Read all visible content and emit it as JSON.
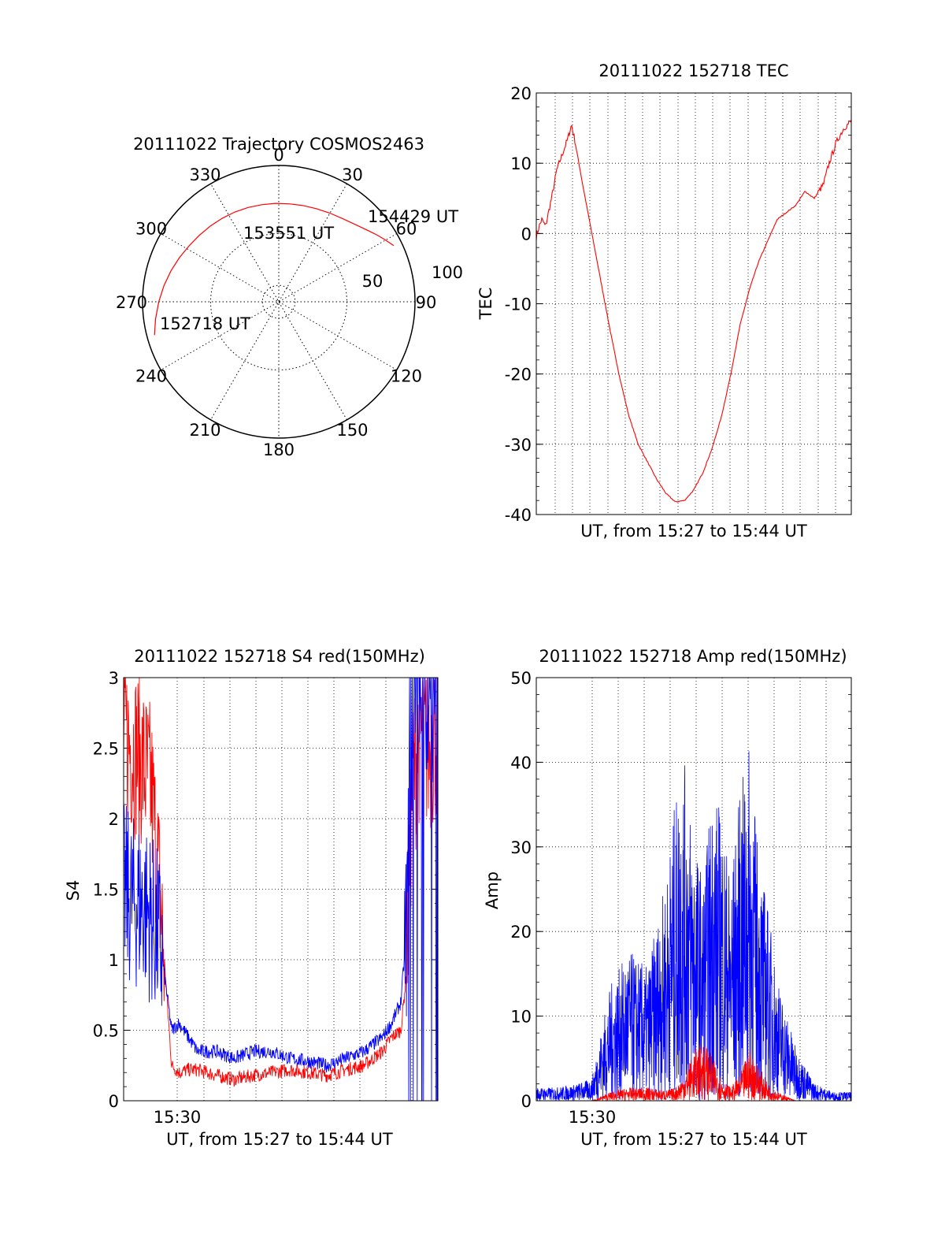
{
  "chart_data": [
    {
      "type": "polar",
      "title": "20111022 Trajectory COSMOS2463",
      "azimuth_labels": [
        "0",
        "30",
        "60",
        "90",
        "120",
        "150",
        "180",
        "210",
        "240",
        "270",
        "300",
        "330"
      ],
      "radial_labels": [
        "50",
        "100"
      ],
      "rlim": [
        0,
        100
      ],
      "grid": true,
      "trajectory": {
        "color": "#ff0000",
        "azimuth": [
          255,
          262,
          270,
          278,
          286,
          294,
          302,
          310,
          318,
          326,
          334,
          342,
          350,
          358,
          6,
          14,
          22,
          30,
          38,
          46,
          52,
          56,
          60,
          64
        ],
        "zenith": [
          85,
          82.2,
          79.3,
          76.6,
          74.1,
          71.8,
          69.8,
          68.4,
          67.4,
          66.6,
          66.0,
          65.5,
          65.1,
          65.0,
          65.0,
          65.5,
          66.3,
          67.6,
          69.4,
          72.4,
          75.8,
          78.6,
          81.5,
          84.5
        ]
      },
      "annotations": [
        "152718 UT",
        "153551 UT",
        "154429 UT"
      ]
    },
    {
      "type": "line",
      "title": "20111022 152718 TEC",
      "xlabel": "UT, from 15:27 to 15:44 UT",
      "ylabel": "TEC",
      "xlim": [
        0,
        17
      ],
      "ylim": [
        -40,
        20
      ],
      "yticks": [
        "-40",
        "-30",
        "-20",
        "-10",
        "0",
        "10",
        "20"
      ],
      "grid": true,
      "series": [
        {
          "color": "#ff0000",
          "x": [
            0,
            0.15,
            0.3,
            0.5,
            0.7,
            0.9,
            1.1,
            1.3,
            1.5,
            1.7,
            1.9,
            2.1,
            2.5,
            3.0,
            3.5,
            4.0,
            4.5,
            5.0,
            5.5,
            6.0,
            6.5,
            7.0,
            7.5,
            8.0,
            8.5,
            9.0,
            9.5,
            10.0,
            10.5,
            11.0,
            11.5,
            12.0,
            12.5,
            13.0,
            13.5,
            14.0,
            14.5,
            15.0,
            15.5,
            15.8,
            16.2,
            16.6,
            17.0
          ],
          "y": [
            -0.5,
            1,
            2,
            1,
            3.5,
            6,
            9,
            10.5,
            12,
            13.5,
            15.5,
            13,
            7,
            0,
            -7,
            -14,
            -20.5,
            -26,
            -30,
            -32.5,
            -35,
            -37,
            -38.2,
            -38,
            -36.5,
            -34,
            -30.5,
            -26,
            -20,
            -13,
            -8,
            -4,
            -1,
            2,
            3,
            4,
            6,
            5,
            7,
            10,
            13,
            15,
            16
          ]
        }
      ]
    },
    {
      "type": "line",
      "title": "20111022 152718 S4 red(150MHz)",
      "xlabel": "UT, from 15:27 to 15:44 UT",
      "ylabel": "S4",
      "xlim": [
        0,
        17
      ],
      "ylim": [
        0,
        3
      ],
      "yticks": [
        "0",
        "0.5",
        "1",
        "1.5",
        "2",
        "2.5",
        "3"
      ],
      "xticks": [
        "15:30"
      ],
      "grid": true,
      "series": [
        {
          "color": "#ff0000",
          "x": [
            0,
            0.5,
            1.0,
            1.5,
            2.0,
            2.3,
            2.6,
            3.0,
            3.5,
            4.0,
            5.0,
            6.0,
            7.0,
            8.0,
            9.0,
            10.0,
            11.0,
            12.0,
            13.0,
            14.0,
            14.5,
            15.0,
            15.3,
            15.6,
            16.0,
            16.5,
            17.0
          ],
          "y": [
            2.6,
            2.5,
            2.4,
            2.2,
            1.4,
            0.8,
            0.25,
            0.2,
            0.22,
            0.22,
            0.18,
            0.15,
            0.18,
            0.2,
            0.22,
            0.2,
            0.18,
            0.22,
            0.25,
            0.35,
            0.45,
            0.5,
            0.9,
            2.2,
            2.6,
            2.5,
            2.6
          ]
        },
        {
          "color": "#0000ff",
          "x": [
            0,
            0.5,
            1.0,
            1.5,
            2.0,
            2.3,
            2.6,
            3.0,
            3.5,
            4.0,
            5.0,
            6.0,
            7.0,
            8.0,
            9.0,
            10.0,
            11.0,
            12.0,
            13.0,
            14.0,
            14.5,
            15.0,
            15.3,
            15.6,
            16.0,
            16.5,
            17.0
          ],
          "y": [
            1.5,
            1.4,
            1.4,
            1.3,
            1.1,
            0.8,
            0.5,
            0.55,
            0.45,
            0.35,
            0.35,
            0.3,
            0.35,
            0.35,
            0.3,
            0.28,
            0.25,
            0.3,
            0.35,
            0.45,
            0.55,
            0.7,
            1.2,
            2.6,
            2.9,
            2.7,
            2.9
          ]
        }
      ]
    },
    {
      "type": "line",
      "title": "20111022 152718 Amp red(150MHz)",
      "xlabel": "UT, from 15:27 to 15:44 UT",
      "ylabel": "Amp",
      "xlim": [
        0,
        17
      ],
      "ylim": [
        0,
        50
      ],
      "yticks": [
        "0",
        "10",
        "20",
        "30",
        "40",
        "50"
      ],
      "xticks": [
        "15:30"
      ],
      "grid": true,
      "series": [
        {
          "color": "#0000ff",
          "x": [
            0,
            1,
            2,
            3,
            3.5,
            4,
            4.5,
            5,
            5.5,
            6,
            6.5,
            7,
            7.5,
            8,
            8.5,
            9,
            9.5,
            10,
            10.5,
            11,
            11.5,
            12,
            12.5,
            13,
            13.5,
            14,
            14.5,
            15,
            16,
            17
          ],
          "y": [
            1.5,
            1.5,
            1.8,
            2.5,
            8,
            13,
            15,
            17,
            16,
            15,
            20,
            25,
            34,
            38,
            30,
            25,
            35,
            33,
            25,
            35,
            40,
            28,
            22,
            14,
            10,
            6,
            4,
            2,
            1,
            1
          ]
        },
        {
          "color": "#ff0000",
          "x": [
            3,
            4,
            5,
            6,
            7,
            7.5,
            8,
            8.5,
            9,
            9.5,
            10,
            10.5,
            11,
            11.5,
            12,
            12.5,
            13,
            14
          ],
          "y": [
            0,
            1,
            1.5,
            1.5,
            1.2,
            1.5,
            3,
            5.5,
            7,
            5,
            2.5,
            1.5,
            3,
            6,
            4,
            2,
            1,
            0
          ]
        }
      ]
    }
  ]
}
